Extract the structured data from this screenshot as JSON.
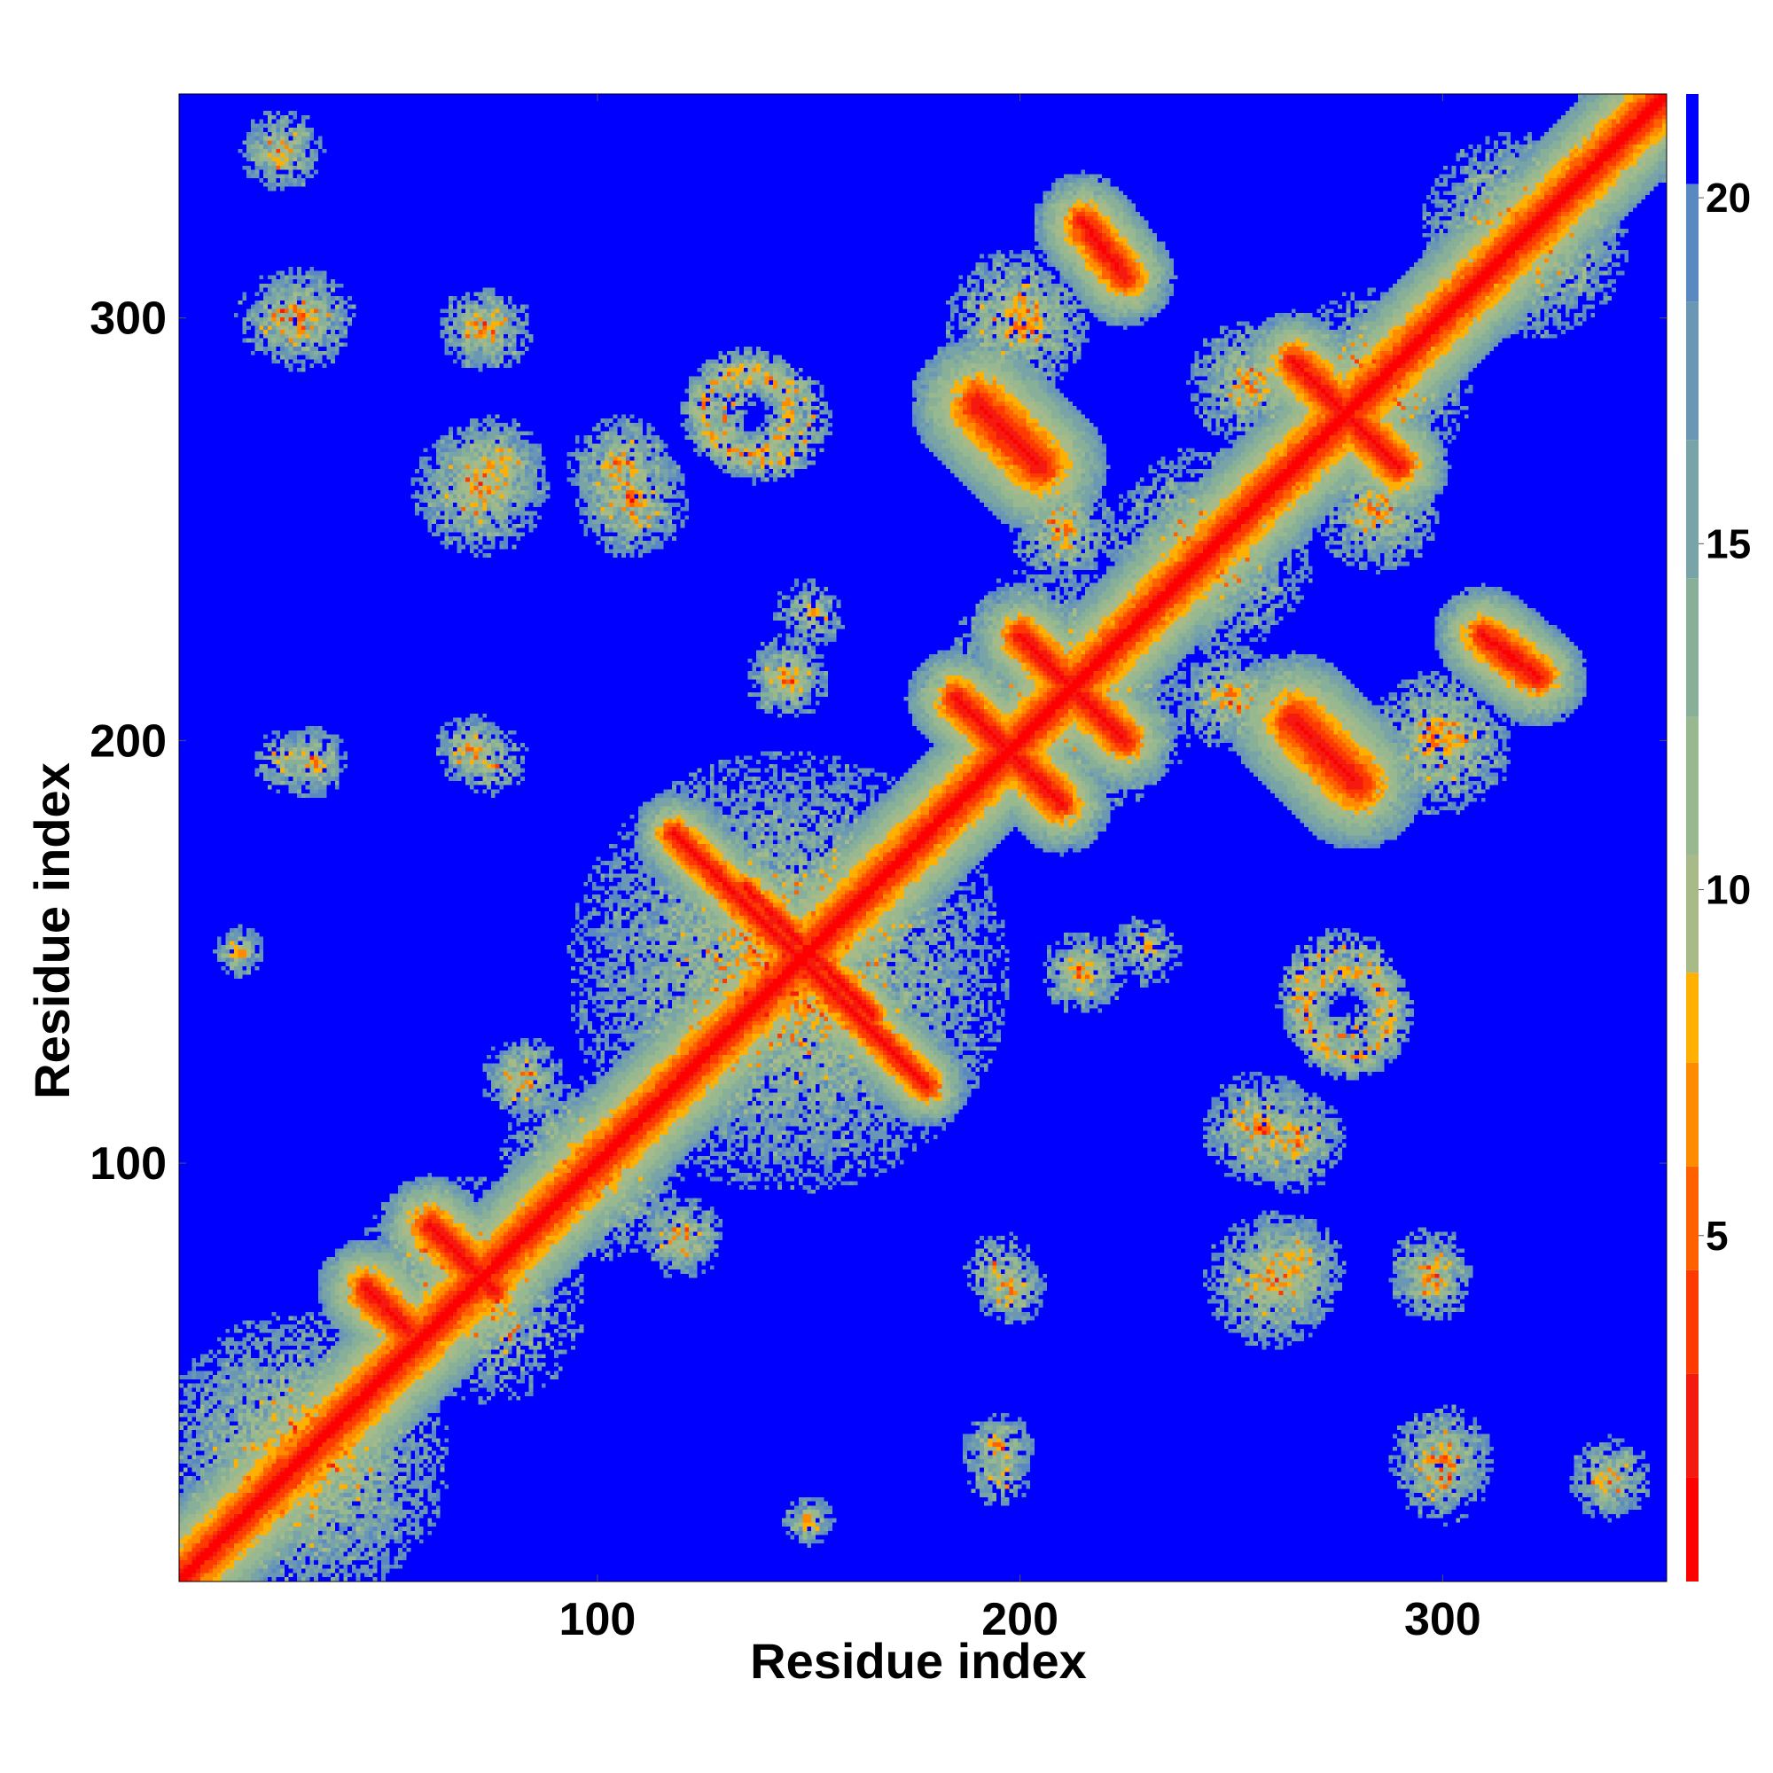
{
  "chart_data": {
    "type": "heatmap",
    "title": "",
    "xlabel": "Residue index",
    "ylabel": "Residue index",
    "xlim": [
      1,
      353
    ],
    "ylim": [
      1,
      353
    ],
    "x_ticks": [
      100,
      200,
      300
    ],
    "y_ticks": [
      100,
      200,
      300
    ],
    "x_tick_labels": [
      "100",
      "200",
      "300"
    ],
    "y_tick_labels": [
      "100",
      "200",
      "300"
    ],
    "colorbar": {
      "range": [
        0,
        21.5
      ],
      "ticks": [
        5,
        10,
        15,
        20
      ],
      "tick_labels": [
        "5",
        "10",
        "15",
        "20"
      ],
      "levels": [
        {
          "upto": 1.5,
          "color": "#ff0000"
        },
        {
          "upto": 3,
          "color": "#f51a10"
        },
        {
          "upto": 4.5,
          "color": "#ff3a00"
        },
        {
          "upto": 6,
          "color": "#ff6000"
        },
        {
          "upto": 7.5,
          "color": "#ff8c00"
        },
        {
          "upto": 8.8,
          "color": "#ffb000"
        },
        {
          "upto": 10.5,
          "color": "#a8ba88"
        },
        {
          "upto": 12.5,
          "color": "#98b890"
        },
        {
          "upto": 14.5,
          "color": "#88b098"
        },
        {
          "upto": 16.5,
          "color": "#78a4a8"
        },
        {
          "upto": 18.5,
          "color": "#6a98b4"
        },
        {
          "upto": 20.2,
          "color": "#5a88c0"
        },
        {
          "upto": 21.5,
          "color": "#0000ff"
        }
      ]
    },
    "background_value": 21.5,
    "diagonal_width": 1.2,
    "features": [
      {
        "kind": "band",
        "x1": 1,
        "y1": 1,
        "x2": 353,
        "y2": 353,
        "width": 3.5
      },
      {
        "kind": "blob",
        "cx": 30,
        "cy": 30,
        "r": 28
      },
      {
        "kind": "blob",
        "cx": 65,
        "cy": 75,
        "r": 18
      },
      {
        "kind": "blob",
        "cx": 98,
        "cy": 98,
        "r": 18
      },
      {
        "kind": "blob",
        "cx": 145,
        "cy": 145,
        "r": 42
      },
      {
        "kind": "blob",
        "cx": 215,
        "cy": 210,
        "r": 22
      },
      {
        "kind": "blob",
        "cx": 245,
        "cy": 245,
        "r": 20
      },
      {
        "kind": "blob",
        "cx": 285,
        "cy": 285,
        "r": 18
      },
      {
        "kind": "blob",
        "cx": 320,
        "cy": 320,
        "r": 20
      },
      {
        "kind": "blob",
        "cx": 345,
        "cy": 345,
        "r": 12
      },
      {
        "kind": "band",
        "x1": 45,
        "y1": 70,
        "x2": 55,
        "y2": 60,
        "width": 3
      },
      {
        "kind": "band",
        "x1": 60,
        "y1": 85,
        "x2": 75,
        "y2": 70,
        "width": 3
      },
      {
        "kind": "band",
        "x1": 185,
        "y1": 210,
        "x2": 210,
        "y2": 185,
        "width": 3
      },
      {
        "kind": "band",
        "x1": 200,
        "y1": 225,
        "x2": 225,
        "y2": 200,
        "width": 3
      },
      {
        "kind": "band",
        "x1": 265,
        "y1": 290,
        "x2": 290,
        "y2": 265,
        "width": 3
      },
      {
        "kind": "band",
        "x1": 118,
        "y1": 178,
        "x2": 178,
        "y2": 118,
        "width": 2.5
      },
      {
        "kind": "band",
        "x1": 135,
        "y1": 165,
        "x2": 165,
        "y2": 135,
        "width": 2
      },
      {
        "kind": "ring",
        "cx": 135,
        "cy": 278,
        "r": 10
      },
      {
        "kind": "ring",
        "cx": 278,
        "cy": 135,
        "r": 10
      },
      {
        "kind": "blob",
        "cx": 30,
        "cy": 300,
        "r": 10
      },
      {
        "kind": "blob",
        "cx": 300,
        "cy": 30,
        "r": 10
      },
      {
        "kind": "blob",
        "cx": 72,
        "cy": 298,
        "r": 8
      },
      {
        "kind": "blob",
        "cx": 298,
        "cy": 72,
        "r": 8
      },
      {
        "kind": "blob",
        "cx": 108,
        "cy": 257,
        "r": 11
      },
      {
        "kind": "blob",
        "cx": 257,
        "cy": 108,
        "r": 11
      },
      {
        "kind": "blob",
        "cx": 72,
        "cy": 260,
        "r": 13
      },
      {
        "kind": "blob",
        "cx": 260,
        "cy": 72,
        "r": 13
      },
      {
        "kind": "blob",
        "cx": 32,
        "cy": 195,
        "r": 7
      },
      {
        "kind": "blob",
        "cx": 195,
        "cy": 32,
        "r": 7
      },
      {
        "kind": "blob",
        "cx": 70,
        "cy": 198,
        "r": 7
      },
      {
        "kind": "blob",
        "cx": 198,
        "cy": 70,
        "r": 7
      },
      {
        "kind": "blob",
        "cx": 145,
        "cy": 215,
        "r": 8
      },
      {
        "kind": "blob",
        "cx": 215,
        "cy": 145,
        "r": 8
      },
      {
        "kind": "blob",
        "cx": 215,
        "cy": 145,
        "r": 7
      },
      {
        "kind": "band",
        "x1": 190,
        "y1": 280,
        "x2": 205,
        "y2": 265,
        "width": 4
      },
      {
        "kind": "band",
        "x1": 265,
        "y1": 205,
        "x2": 280,
        "y2": 190,
        "width": 4
      },
      {
        "kind": "band",
        "x1": 215,
        "y1": 323,
        "x2": 225,
        "y2": 310,
        "width": 3
      },
      {
        "kind": "band",
        "x1": 310,
        "y1": 225,
        "x2": 323,
        "y2": 215,
        "width": 3
      },
      {
        "kind": "blob",
        "cx": 200,
        "cy": 300,
        "r": 14
      },
      {
        "kind": "blob",
        "cx": 300,
        "cy": 200,
        "r": 14
      },
      {
        "kind": "blob",
        "cx": 255,
        "cy": 285,
        "r": 12
      },
      {
        "kind": "blob",
        "cx": 285,
        "cy": 255,
        "r": 12
      },
      {
        "kind": "blob",
        "cx": 210,
        "cy": 250,
        "r": 10
      },
      {
        "kind": "blob",
        "cx": 250,
        "cy": 210,
        "r": 10
      },
      {
        "kind": "blob",
        "cx": 265,
        "cy": 105,
        "r": 10
      },
      {
        "kind": "blob",
        "cx": 105,
        "cy": 265,
        "r": 10
      },
      {
        "kind": "blob",
        "cx": 265,
        "cy": 75,
        "r": 10
      },
      {
        "kind": "blob",
        "cx": 75,
        "cy": 265,
        "r": 10
      },
      {
        "kind": "blob",
        "cx": 297,
        "cy": 75,
        "r": 8
      },
      {
        "kind": "blob",
        "cx": 300,
        "cy": 25,
        "r": 9
      },
      {
        "kind": "blob",
        "cx": 340,
        "cy": 25,
        "r": 8
      },
      {
        "kind": "blob",
        "cx": 25,
        "cy": 340,
        "r": 8
      },
      {
        "kind": "blob",
        "cx": 195,
        "cy": 25,
        "r": 6
      },
      {
        "kind": "blob",
        "cx": 195,
        "cy": 75,
        "r": 7
      },
      {
        "kind": "blob",
        "cx": 150,
        "cy": 15,
        "r": 5
      },
      {
        "kind": "blob",
        "cx": 15,
        "cy": 150,
        "r": 5
      },
      {
        "kind": "blob",
        "cx": 230,
        "cy": 150,
        "r": 7
      },
      {
        "kind": "ring",
        "cx": 276,
        "cy": 140,
        "r": 10
      },
      {
        "kind": "blob",
        "cx": 120,
        "cy": 82,
        "r": 8
      },
      {
        "kind": "blob",
        "cx": 82,
        "cy": 120,
        "r": 8
      }
    ]
  }
}
